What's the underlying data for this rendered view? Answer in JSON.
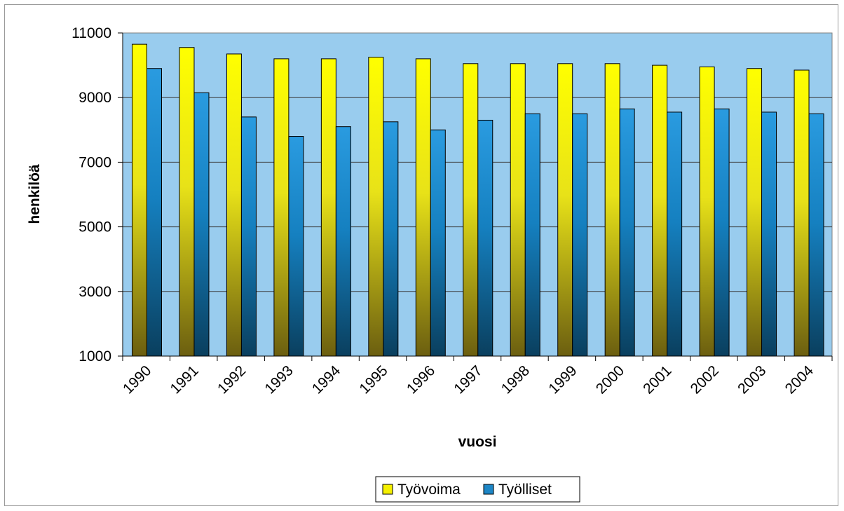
{
  "chart_data": {
    "type": "bar",
    "title": "",
    "xlabel": "vuosi",
    "ylabel": "henkilöä",
    "ylim": [
      1000,
      11000
    ],
    "yticks": [
      1000,
      3000,
      5000,
      7000,
      9000,
      11000
    ],
    "grid": true,
    "legend_position": "bottom",
    "plot_background": "#99ccee",
    "categories": [
      "1990",
      "1991",
      "1992",
      "1993",
      "1994",
      "1995",
      "1996",
      "1997",
      "1998",
      "1999",
      "2000",
      "2001",
      "2002",
      "2003",
      "2004"
    ],
    "series": [
      {
        "name": "Työvoima",
        "color": "#f5f000",
        "values": [
          10650,
          10550,
          10350,
          10200,
          10200,
          10250,
          10200,
          10050,
          10050,
          10050,
          10050,
          10000,
          9950,
          9900,
          9850
        ]
      },
      {
        "name": "Työlliset",
        "color": "#1d86c6",
        "values": [
          9900,
          9150,
          8400,
          7800,
          8100,
          8250,
          8000,
          8300,
          8500,
          8500,
          8650,
          8550,
          8650,
          8550,
          8500
        ]
      }
    ]
  }
}
